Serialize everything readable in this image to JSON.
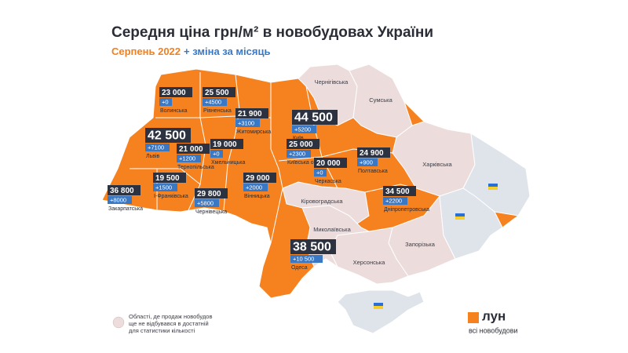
{
  "header": {
    "title": "Середня ціна грн/м² в новобудовах України",
    "subtitle_period": "Серпень 2022",
    "subtitle_change": "+ зміна за місяць"
  },
  "regions": [
    {
      "name": "Волинська",
      "price": "23 000",
      "change": "+0"
    },
    {
      "name": "Рівненська",
      "price": "25 500",
      "change": "+4500"
    },
    {
      "name": "Львів",
      "price": "42 500",
      "change": "+7100"
    },
    {
      "name": "Тернопільська",
      "price": "21 000",
      "change": "+1200"
    },
    {
      "name": "Хмельницька",
      "price": "19 000",
      "change": "+0"
    },
    {
      "name": "Житомирська",
      "price": "21 900",
      "change": "+3100"
    },
    {
      "name": "Київ",
      "price": "44 500",
      "change": "+5200"
    },
    {
      "name": "Київська область",
      "price": "25 000",
      "change": "+2300"
    },
    {
      "name": "Черкаська",
      "price": "20 000",
      "change": "+0"
    },
    {
      "name": "Полтавська",
      "price": "24 900",
      "change": "+900"
    },
    {
      "name": "Дніпропетровська",
      "price": "34 500",
      "change": "+2200"
    },
    {
      "name": "Одеса",
      "price": "38 500",
      "change": "+10 500"
    },
    {
      "name": "Вінницька",
      "price": "29 000",
      "change": "+2000"
    },
    {
      "name": "Чернівецька",
      "price": "29 800",
      "change": "+5800"
    },
    {
      "name": "І-Франківська",
      "price": "19 500",
      "change": "+1500"
    },
    {
      "name": "Закарпатська",
      "price": "36 800",
      "change": "+8000"
    }
  ],
  "grey_regions": [
    "Чернігівська",
    "Сумська",
    "Харківська",
    "Кіровоградська",
    "Миколаївська",
    "Запорізька",
    "Херсонська"
  ],
  "legend": {
    "lines": [
      "Області, де продаж новобудов",
      "ще не відбувався в достатній",
      "для статистики кількості"
    ]
  },
  "logo": {
    "name": "лун",
    "tagline": "всі новобудови"
  }
}
